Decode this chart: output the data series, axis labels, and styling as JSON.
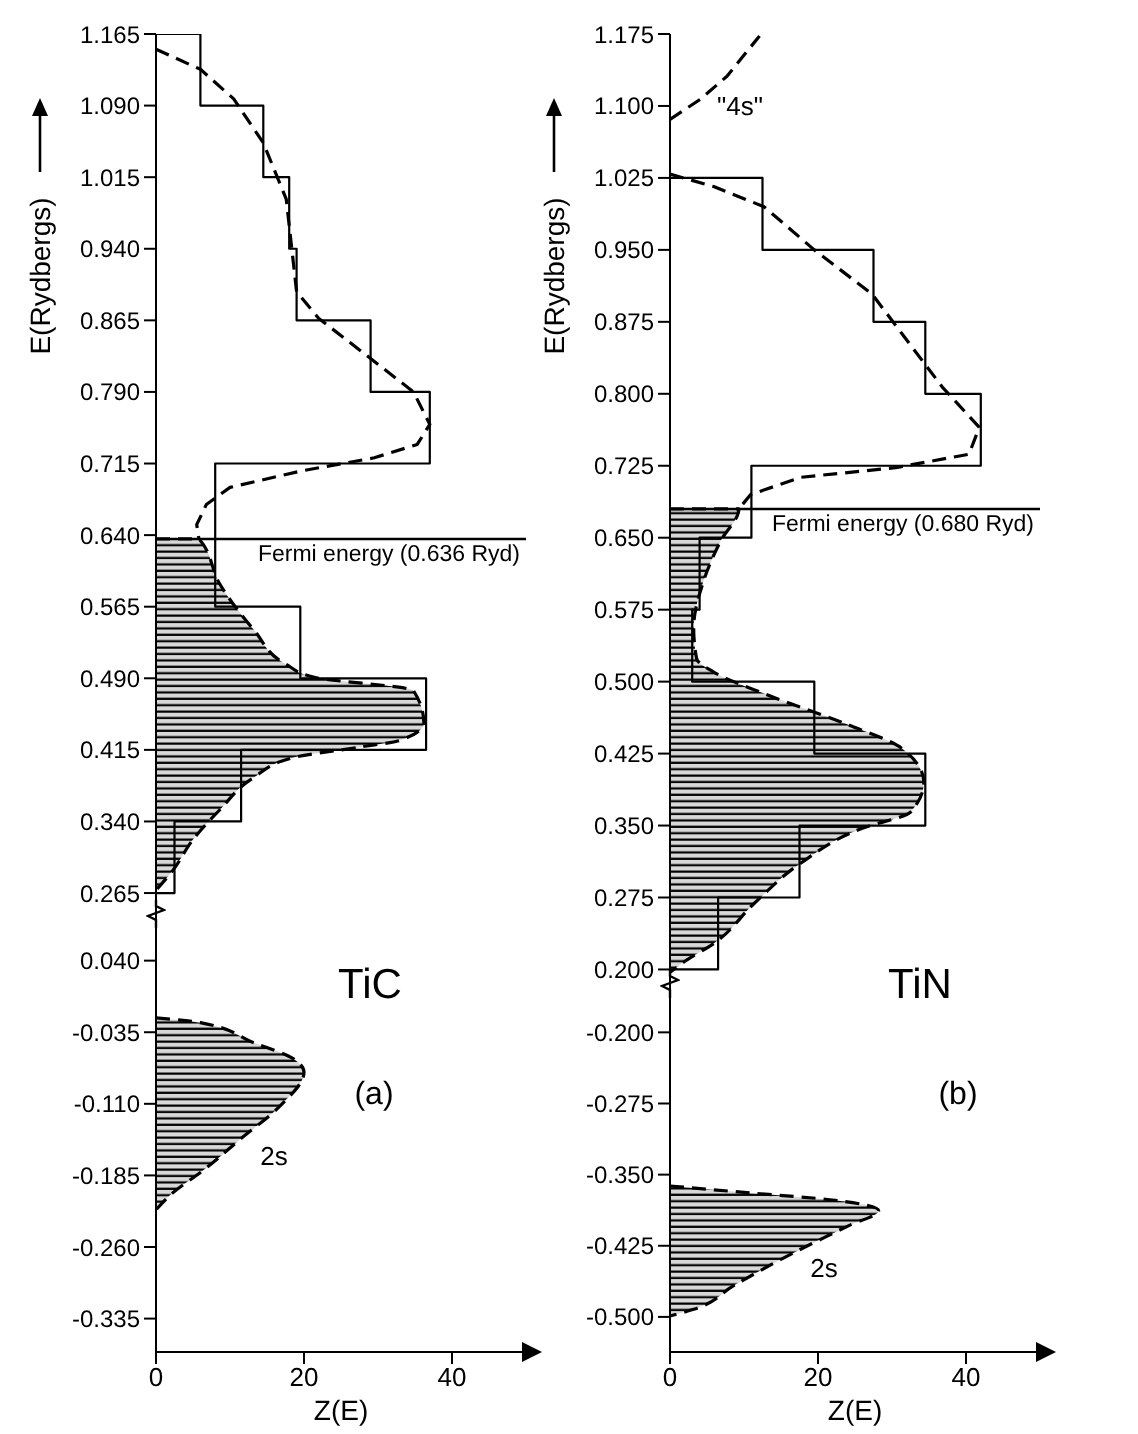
{
  "chart_data": [
    {
      "type": "line",
      "ylabel": "E(Rydbergs)",
      "series": [
        {
          "color": "#000000",
          "line_style": "solid",
          "x": [
            0,
            6,
            6,
            14.5,
            14.5,
            18,
            18,
            19,
            19,
            29,
            29,
            37,
            37,
            8,
            8,
            19.5,
            19.5,
            36.5,
            36.5,
            11.5,
            11.5,
            2.5,
            2.5,
            0
          ],
          "values": [
            1.165,
            1.165,
            1.09,
            1.09,
            1.015,
            1.015,
            0.94,
            0.94,
            0.865,
            0.865,
            0.79,
            0.79,
            0.715,
            0.715,
            0.565,
            0.565,
            0.49,
            0.49,
            0.415,
            0.415,
            0.34,
            0.34,
            0.265,
            0.265
          ]
        },
        {
          "type": "line",
          "color": "#000000",
          "line_style": "dashed",
          "x": [
            0,
            6,
            10.5,
            14.5,
            17.6,
            19,
            22,
            29,
            34.8,
            37,
            35.3,
            29.5,
            19.5,
            10,
            6.8,
            5.5,
            5.8
          ],
          "values": [
            1.149,
            1.128,
            1.097,
            1.051,
            0.992,
            0.895,
            0.867,
            0.825,
            0.79,
            0.756,
            0.735,
            0.721,
            0.707,
            0.69,
            0.672,
            0.651,
            0.636
          ]
        },
        {
          "type": "area",
          "color": "#000000",
          "line_style": "dashed",
          "x": [
            0,
            5.8,
            8.6,
            13.3,
            17.5,
            21.4,
            34.8,
            36.2,
            33,
            27.6,
            18.6,
            13.2,
            8.6,
            5,
            2.3,
            0
          ],
          "values": [
            0.636,
            0.636,
            0.589,
            0.54,
            0.505,
            0.491,
            0.477,
            0.443,
            0.425,
            0.418,
            0.407,
            0.386,
            0.352,
            0.321,
            0.289,
            0.268
          ]
        }
      ],
      "xlim": [
        0,
        50
      ],
      "ylim": [
        0.22,
        1.165
      ],
      "yticks": [
        1.165,
        {
          "value": 1.09,
          "label": "1.090"
        },
        1.015,
        {
          "value": 0.94,
          "label": "0.940"
        },
        0.865,
        {
          "value": 0.79,
          "label": "0.790"
        },
        0.715,
        {
          "value": 0.64,
          "label": "0.640"
        },
        0.565,
        {
          "value": 0.49,
          "label": "0.490"
        },
        0.415,
        {
          "value": 0.34,
          "label": "0.340"
        },
        0.265
      ],
      "tick_labels": "y",
      "ref_lines": [
        {
          "axis": "y",
          "value": 0.636,
          "label": "Fermi energy (0.636 Ryd)"
        }
      ]
    },
    {
      "type": "area",
      "xlabel": "Z(E)",
      "annotations": [
        "TiC",
        "(a)",
        "2s"
      ],
      "series": [
        {
          "color": "#000000",
          "line_style": "dashed",
          "x": [
            0,
            6,
            13.2,
            18.6,
            20,
            16.8,
            11.4,
            6,
            2.3,
            0
          ],
          "values": [
            -0.02,
            -0.025,
            -0.046,
            -0.063,
            -0.077,
            -0.112,
            -0.147,
            -0.182,
            -0.203,
            -0.221
          ]
        }
      ],
      "xlim": [
        0,
        50
      ],
      "ylim": [
        -0.37,
        0.07
      ],
      "xticks": [
        0,
        20,
        40
      ],
      "yticks": [
        {
          "value": 0.04,
          "label": "0.040"
        },
        -0.035,
        {
          "value": -0.11,
          "label": "-0.110"
        },
        -0.185,
        {
          "value": -0.26,
          "label": "-0.260"
        },
        -0.335
      ]
    },
    {
      "type": "line",
      "ylabel": "E(Rydbergs)",
      "annotations": [
        "\"4s\""
      ],
      "series": [
        {
          "color": "#000000",
          "line_style": "solid",
          "x": [
            0,
            12.5,
            12.5,
            27.5,
            27.5,
            34.5,
            34.5,
            42,
            42,
            11,
            11,
            4,
            4,
            3,
            3,
            19.5,
            19.5,
            34.5,
            34.5,
            17.5,
            17.5,
            6.5,
            6.5,
            0
          ],
          "values": [
            1.025,
            1.025,
            0.95,
            0.95,
            0.875,
            0.875,
            0.8,
            0.8,
            0.725,
            0.725,
            0.65,
            0.65,
            0.575,
            0.575,
            0.5,
            0.5,
            0.425,
            0.425,
            0.35,
            0.35,
            0.275,
            0.275,
            0.2,
            0.2
          ]
        },
        {
          "type": "line",
          "color": "#000000",
          "line_style": "dashed",
          "x": [
            0,
            4.1,
            7.7,
            12.1
          ],
          "values": [
            1.086,
            1.107,
            1.131,
            1.173
          ]
        },
        {
          "type": "line",
          "color": "#000000",
          "line_style": "dashed",
          "x": [
            0,
            5.9,
            12.7,
            19.5,
            27.3,
            31.4,
            36.8,
            41.8,
            40.4,
            30.5,
            17.7,
            10.9,
            9.3
          ],
          "values": [
            1.029,
            1.016,
            0.995,
            0.95,
            0.904,
            0.862,
            0.807,
            0.765,
            0.737,
            0.723,
            0.713,
            0.695,
            0.68
          ]
        },
        {
          "type": "area",
          "color": "#000000",
          "line_style": "dashed",
          "x": [
            0,
            9.3,
            6.8,
            4.5,
            3.2,
            3.6,
            5.9,
            13.2,
            24.1,
            31.4,
            34.3,
            32.5,
            25.9,
            17.7,
            11.4,
            5.9,
            2.3,
            0
          ],
          "values": [
            0.68,
            0.68,
            0.646,
            0.604,
            0.556,
            0.524,
            0.51,
            0.486,
            0.455,
            0.43,
            0.395,
            0.364,
            0.347,
            0.311,
            0.269,
            0.227,
            0.21,
            0.197
          ]
        }
      ],
      "xlim": [
        0,
        50
      ],
      "ylim": [
        0.164,
        1.175
      ],
      "yticks": [
        1.175,
        {
          "value": 1.1,
          "label": "1.100"
        },
        1.025,
        {
          "value": 0.95,
          "label": "0.950"
        },
        0.875,
        {
          "value": 0.8,
          "label": "0.800"
        },
        0.725,
        {
          "value": 0.65,
          "label": "0.650"
        },
        0.575,
        {
          "value": 0.5,
          "label": "0.500"
        },
        0.425,
        {
          "value": 0.35,
          "label": "0.350"
        },
        0.275,
        {
          "value": 0.2,
          "label": "0.200"
        }
      ],
      "tick_labels": "y",
      "ref_lines": [
        {
          "axis": "y",
          "value": 0.68,
          "label": "Fermi energy (0.680 Ryd)"
        }
      ]
    },
    {
      "type": "area",
      "xlabel": "Z(E)",
      "annotations": [
        "TiN",
        "(b)",
        "2s"
      ],
      "series": [
        {
          "color": "#000000",
          "line_style": "dashed",
          "x": [
            0,
            10.4,
            22.3,
            28.2,
            24.1,
            16.8,
            8.6,
            3.2,
            0
          ],
          "values": [
            -0.362,
            -0.369,
            -0.377,
            -0.388,
            -0.404,
            -0.432,
            -0.467,
            -0.492,
            -0.499
          ]
        }
      ],
      "xlim": [
        0,
        50
      ],
      "ylim": [
        -0.537,
        -0.168
      ],
      "xticks": [
        0,
        20,
        40
      ],
      "yticks": [
        {
          "value": -0.2,
          "label": "-0.200"
        },
        -0.275,
        {
          "value": -0.35,
          "label": "-0.350"
        },
        -0.425,
        {
          "value": -0.5,
          "label": "-0.500"
        }
      ]
    }
  ]
}
